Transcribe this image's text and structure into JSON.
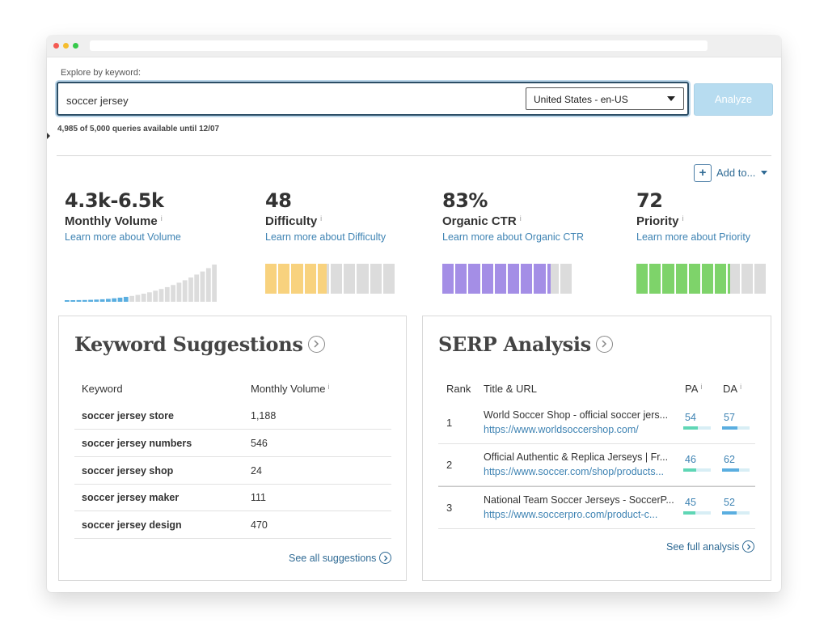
{
  "search": {
    "label": "Explore by keyword:",
    "value": "soccer jersey",
    "locale": "United States - en-US",
    "analyze_label": "Analyze",
    "quota": "4,985 of 5,000 queries available until 12/07"
  },
  "actions": {
    "add_to": "Add to..."
  },
  "metrics": [
    {
      "value": "4.3k-6.5k",
      "name": "Monthly Volume",
      "learn": "Learn more about Volume"
    },
    {
      "value": "48",
      "name": "Difficulty",
      "learn": "Learn more about Difficulty",
      "fill": 0.48,
      "color": "#f8d27e"
    },
    {
      "value": "83%",
      "name": "Organic CTR",
      "learn": "Learn more about Organic CTR",
      "fill": 0.83,
      "color": "#a48ee6"
    },
    {
      "value": "72",
      "name": "Priority",
      "learn": "Learn more about Priority",
      "fill": 0.72,
      "color": "#7ed36a"
    }
  ],
  "info_icon": "i",
  "keyword_suggestions": {
    "title": "Keyword Suggestions",
    "headers": [
      "Keyword",
      "Monthly Volume"
    ],
    "rows": [
      [
        "soccer jersey store",
        "1,188"
      ],
      [
        "soccer jersey numbers",
        "546"
      ],
      [
        "soccer jersey shop",
        "24"
      ],
      [
        "soccer jersey maker",
        "111"
      ],
      [
        "soccer jersey design",
        "470"
      ]
    ],
    "see_all": "See all suggestions"
  },
  "serp": {
    "title": "SERP Analysis",
    "headers": [
      "Rank",
      "Title & URL",
      "PA",
      "DA"
    ],
    "rows": [
      {
        "rank": "1",
        "title": "World Soccer Shop - official soccer jers...",
        "url": "https://www.worldsoccershop.com/",
        "pa": "54",
        "da": "57"
      },
      {
        "rank": "2",
        "title": "Official Authentic & Replica Jerseys | Fr...",
        "url": "https://www.soccer.com/shop/products...",
        "pa": "46",
        "da": "62"
      },
      {
        "rank": "3",
        "title": "National Team Soccer Jerseys - SoccerP...",
        "url": "https://www.soccerpro.com/product-c...",
        "pa": "45",
        "da": "52"
      }
    ],
    "see_full": "See full analysis",
    "pa_color": "#5fd6b5",
    "da_color": "#5aaee0"
  }
}
